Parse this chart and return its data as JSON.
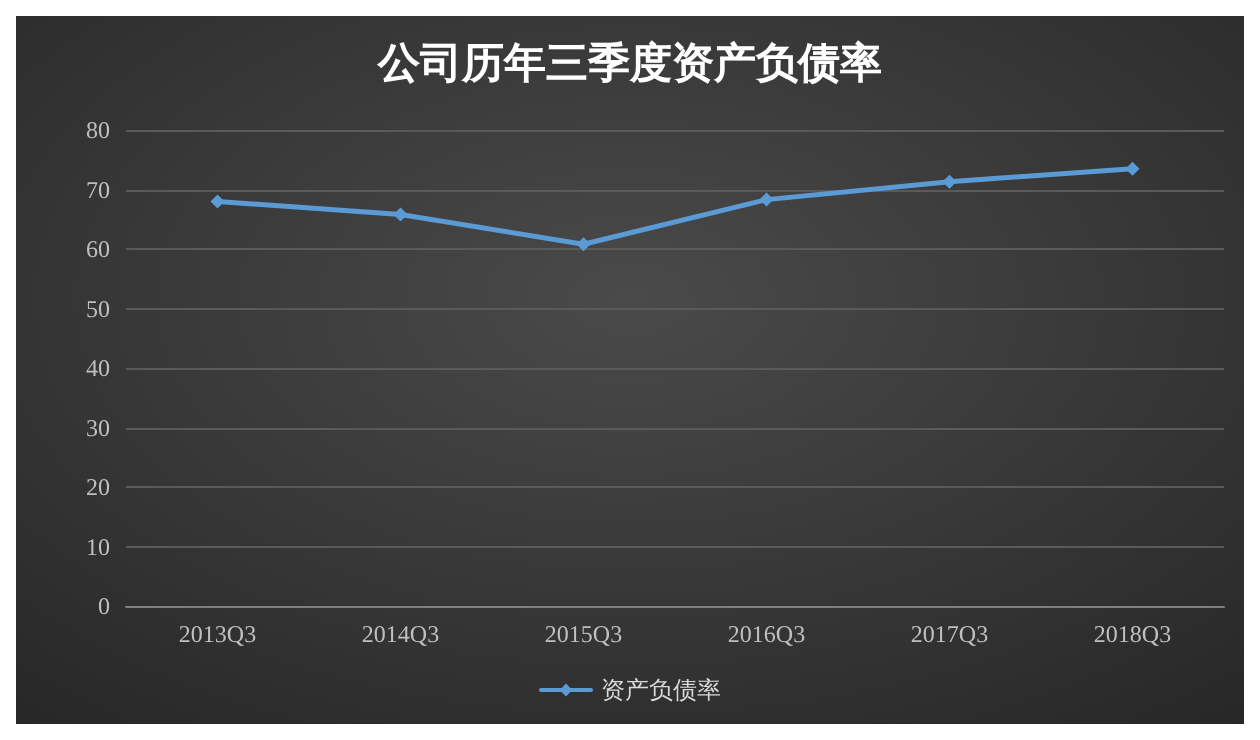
{
  "chart_data": {
    "type": "line",
    "title": "公司历年三季度资产负债率",
    "categories": [
      "2013Q3",
      "2014Q3",
      "2015Q3",
      "2016Q3",
      "2017Q3",
      "2018Q3"
    ],
    "series": [
      {
        "name": "资产负债率",
        "color": "#5b9bd5",
        "values": [
          68,
          65.8,
          60.8,
          68.3,
          71.3,
          73.5
        ]
      }
    ],
    "ylim": [
      0,
      80
    ],
    "yticks": [
      0,
      10,
      20,
      30,
      40,
      50,
      60,
      70,
      80
    ],
    "grid": "y",
    "legend": "bottom",
    "marker": "diamond",
    "line_style": "solid"
  }
}
